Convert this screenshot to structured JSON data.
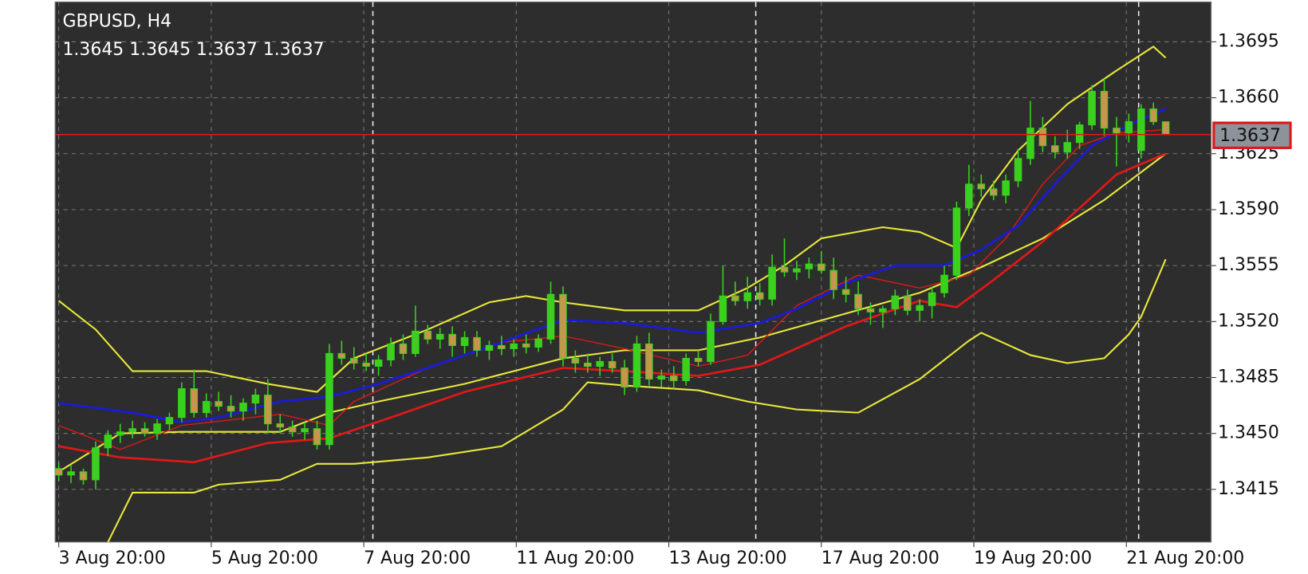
{
  "chart_data": {
    "type": "candlestick",
    "title": "GBPUSD, H4",
    "subtitle": "1.3645 1.3645 1.3637 1.3637",
    "up_color": "#3ad11e",
    "down_color": "#c9944c",
    "wick_color": "#3ad11e",
    "open": [
      1.3428,
      1.3424,
      1.3426,
      1.3421,
      1.3441,
      1.3449,
      1.3451,
      1.3453,
      1.345,
      1.3456,
      1.346,
      1.3478,
      1.3463,
      1.347,
      1.3467,
      1.3464,
      1.3469,
      1.3474,
      1.3456,
      1.3454,
      1.3451,
      1.3453,
      1.3443,
      1.35,
      1.3497,
      1.3494,
      1.3492,
      1.3496,
      1.3506,
      1.35,
      1.3514,
      1.3509,
      1.3512,
      1.3505,
      1.351,
      1.3502,
      1.3505,
      1.3503,
      1.3506,
      1.3504,
      1.3509,
      1.3537,
      1.3497,
      1.3494,
      1.3492,
      1.3495,
      1.3491,
      1.3479,
      1.3506,
      1.3484,
      1.3486,
      1.3483,
      1.3497,
      1.3495,
      1.352,
      1.3536,
      1.3533,
      1.3538,
      1.3534,
      1.3554,
      1.3551,
      1.3553,
      1.3556,
      1.3552,
      1.354,
      1.3537,
      1.3528,
      1.3526,
      1.3528,
      1.3536,
      1.3527,
      1.353,
      1.3538,
      1.3549,
      1.3591,
      1.3606,
      1.3603,
      1.3599,
      1.3608,
      1.3622,
      1.3641,
      1.363,
      1.3626,
      1.3632,
      1.3643,
      1.3664,
      1.3641,
      1.3638,
      1.3627,
      1.3653,
      1.3645
    ],
    "high": [
      1.3432,
      1.343,
      1.3428,
      1.3445,
      1.3452,
      1.3456,
      1.3458,
      1.3457,
      1.3459,
      1.3463,
      1.3482,
      1.349,
      1.3475,
      1.3476,
      1.3474,
      1.3472,
      1.3478,
      1.3484,
      1.3462,
      1.3458,
      1.3457,
      1.3458,
      1.3506,
      1.3508,
      1.3504,
      1.35,
      1.3499,
      1.351,
      1.3512,
      1.353,
      1.3518,
      1.3516,
      1.3517,
      1.3514,
      1.3514,
      1.3508,
      1.3511,
      1.3509,
      1.3512,
      1.3512,
      1.3545,
      1.3542,
      1.3502,
      1.35,
      1.3498,
      1.35,
      1.3496,
      1.3511,
      1.3513,
      1.349,
      1.3492,
      1.35,
      1.3502,
      1.3525,
      1.3555,
      1.3545,
      1.3548,
      1.3544,
      1.3562,
      1.3572,
      1.3558,
      1.356,
      1.3564,
      1.356,
      1.3548,
      1.3545,
      1.3532,
      1.353,
      1.354,
      1.354,
      1.3534,
      1.3542,
      1.3555,
      1.3595,
      1.3618,
      1.3612,
      1.3608,
      1.3612,
      1.3628,
      1.3658,
      1.3648,
      1.3636,
      1.364,
      1.3645,
      1.3668,
      1.3672,
      1.3648,
      1.365,
      1.3656,
      1.3657,
      1.3645
    ],
    "low": [
      1.342,
      1.3419,
      1.3418,
      1.3415,
      1.3436,
      1.3444,
      1.3447,
      1.3448,
      1.3446,
      1.3452,
      1.3457,
      1.346,
      1.346,
      1.3464,
      1.346,
      1.3458,
      1.3462,
      1.345,
      1.345,
      1.3448,
      1.3446,
      1.344,
      1.344,
      1.3493,
      1.349,
      1.3489,
      1.3486,
      1.3492,
      1.3496,
      1.3498,
      1.3506,
      1.3503,
      1.3498,
      1.35,
      1.3498,
      1.3496,
      1.3499,
      1.3498,
      1.35,
      1.3501,
      1.3506,
      1.3492,
      1.3488,
      1.3488,
      1.3486,
      1.3488,
      1.3474,
      1.3476,
      1.348,
      1.3479,
      1.3478,
      1.348,
      1.3492,
      1.3493,
      1.3518,
      1.353,
      1.3528,
      1.353,
      1.353,
      1.3548,
      1.3546,
      1.3547,
      1.355,
      1.3534,
      1.3532,
      1.3524,
      1.3518,
      1.3516,
      1.3524,
      1.3524,
      1.352,
      1.3522,
      1.3535,
      1.3546,
      1.3586,
      1.3598,
      1.3596,
      1.3594,
      1.3604,
      1.3618,
      1.3626,
      1.3622,
      1.3622,
      1.3628,
      1.364,
      1.3636,
      1.3617,
      1.3632,
      1.3622,
      1.3643,
      1.3637
    ],
    "close": [
      1.3424,
      1.3426,
      1.3421,
      1.3441,
      1.3449,
      1.3451,
      1.3453,
      1.345,
      1.3456,
      1.346,
      1.3478,
      1.3463,
      1.347,
      1.3467,
      1.3464,
      1.3469,
      1.3474,
      1.3456,
      1.3454,
      1.3451,
      1.3453,
      1.3443,
      1.35,
      1.3497,
      1.3494,
      1.3492,
      1.3496,
      1.3506,
      1.35,
      1.3514,
      1.3509,
      1.3512,
      1.3505,
      1.351,
      1.3502,
      1.3505,
      1.3503,
      1.3506,
      1.3504,
      1.3509,
      1.3537,
      1.3497,
      1.3494,
      1.3492,
      1.3495,
      1.3491,
      1.3479,
      1.3506,
      1.3484,
      1.3486,
      1.3483,
      1.3497,
      1.3495,
      1.352,
      1.3536,
      1.3533,
      1.3538,
      1.3534,
      1.3554,
      1.3551,
      1.3553,
      1.3556,
      1.3552,
      1.354,
      1.3537,
      1.3528,
      1.3526,
      1.3528,
      1.3536,
      1.3527,
      1.353,
      1.3538,
      1.3549,
      1.3591,
      1.3606,
      1.3603,
      1.3599,
      1.3608,
      1.3622,
      1.3641,
      1.363,
      1.3626,
      1.3632,
      1.3643,
      1.3664,
      1.3641,
      1.3638,
      1.3645,
      1.3653,
      1.3645,
      1.3637
    ],
    "lines": [
      {
        "color": "#e8e83a",
        "width": 2,
        "x": [
          0,
          3,
          6,
          12,
          17,
          21,
          24,
          30,
          35,
          38,
          41,
          46,
          52,
          56,
          59,
          62,
          67,
          70,
          73,
          75,
          78,
          82,
          86,
          89,
          90
        ],
        "values": [
          1.3533,
          1.3515,
          1.3489,
          1.3489,
          1.3481,
          1.3476,
          1.3497,
          1.3515,
          1.3532,
          1.3536,
          1.3532,
          1.3527,
          1.3527,
          1.3541,
          1.3555,
          1.3572,
          1.3579,
          1.3576,
          1.3566,
          1.3596,
          1.3627,
          1.3656,
          1.3677,
          1.3692,
          1.3685
        ]
      },
      {
        "color": "#e8e83a",
        "width": 2,
        "x": [
          0,
          5,
          10,
          18,
          22,
          26,
          33,
          41,
          46,
          52,
          57,
          64,
          70,
          75,
          80,
          85,
          90
        ],
        "values": [
          1.3426,
          1.345,
          1.3451,
          1.3451,
          1.3463,
          1.347,
          1.3481,
          1.3497,
          1.3502,
          1.3502,
          1.351,
          1.3525,
          1.3538,
          1.3554,
          1.3572,
          1.3596,
          1.3625
        ]
      },
      {
        "color": "#e8e83a",
        "width": 2,
        "x": [
          4,
          6,
          11,
          13,
          18,
          21,
          24,
          30,
          36,
          41,
          43,
          46,
          52,
          56,
          60,
          65,
          70,
          74,
          75,
          79,
          82,
          85,
          87,
          88,
          90
        ],
        "values": [
          1.3382,
          1.3413,
          1.3413,
          1.3418,
          1.3421,
          1.3431,
          1.3431,
          1.3435,
          1.3442,
          1.3465,
          1.3482,
          1.348,
          1.3477,
          1.347,
          1.3465,
          1.3463,
          1.3484,
          1.3508,
          1.3513,
          1.3499,
          1.3494,
          1.3497,
          1.3512,
          1.3523,
          1.3559
        ]
      },
      {
        "color": "#e01818",
        "width": 1.3,
        "x": [
          0,
          5,
          10,
          18,
          22,
          24,
          30,
          36,
          41,
          46,
          52,
          56,
          60,
          65,
          70,
          74,
          77,
          80,
          83,
          86,
          90
        ],
        "values": [
          1.3455,
          1.344,
          1.3455,
          1.3462,
          1.3455,
          1.347,
          1.3491,
          1.3507,
          1.3511,
          1.3503,
          1.3492,
          1.3499,
          1.353,
          1.3549,
          1.3541,
          1.3549,
          1.3572,
          1.3606,
          1.363,
          1.3638,
          1.364
        ]
      },
      {
        "color": "#e01818",
        "width": 2.6,
        "x": [
          0,
          5,
          11,
          17,
          22,
          27,
          33,
          41,
          46,
          52,
          57,
          64,
          70,
          73,
          76,
          80,
          83,
          86,
          90
        ],
        "values": [
          1.3442,
          1.3435,
          1.3432,
          1.3444,
          1.3447,
          1.346,
          1.3476,
          1.3491,
          1.3489,
          1.3486,
          1.3493,
          1.3517,
          1.3533,
          1.3529,
          1.3546,
          1.357,
          1.3591,
          1.3612,
          1.3625
        ]
      },
      {
        "color": "#1a1ae0",
        "width": 2.6,
        "x": [
          0,
          6,
          10,
          13,
          18,
          22,
          26,
          30,
          36,
          41,
          46,
          52,
          57,
          60,
          64,
          68,
          72,
          75,
          78,
          81,
          84,
          87,
          90
        ],
        "values": [
          1.3469,
          1.3463,
          1.3457,
          1.346,
          1.347,
          1.3473,
          1.3481,
          1.3491,
          1.3507,
          1.3521,
          1.3519,
          1.3513,
          1.3519,
          1.3528,
          1.3544,
          1.3555,
          1.3555,
          1.3565,
          1.358,
          1.3606,
          1.363,
          1.3643,
          1.3653
        ]
      }
    ],
    "price_line": {
      "value": 1.3637,
      "color": "#e01818"
    },
    "xlim": [
      -0.3,
      93.7
    ],
    "ylim": [
      1.3382,
      1.372
    ],
    "xticks": [
      {
        "value": 0,
        "label": "3 Aug 20:00"
      },
      {
        "value": 12.4,
        "label": "5 Aug 20:00"
      },
      {
        "value": 24.8,
        "label": "7 Aug 20:00"
      },
      {
        "value": 37.2,
        "label": "11 Aug 20:00"
      },
      {
        "value": 49.6,
        "label": "13 Aug 20:00"
      },
      {
        "value": 62,
        "label": "17 Aug 20:00"
      },
      {
        "value": 74.4,
        "label": "19 Aug 20:00"
      },
      {
        "value": 86.8,
        "label": "21 Aug 20:00"
      }
    ],
    "yticks": [
      1.3415,
      {
        "value": 1.345,
        "label": "1.3450"
      },
      1.3485,
      {
        "value": 1.352,
        "label": "1.3520"
      },
      1.3555,
      {
        "value": 1.359,
        "label": "1.3590"
      },
      1.3625,
      {
        "value": 1.366,
        "label": "1.3660"
      },
      1.3695
    ],
    "grid": true
  }
}
